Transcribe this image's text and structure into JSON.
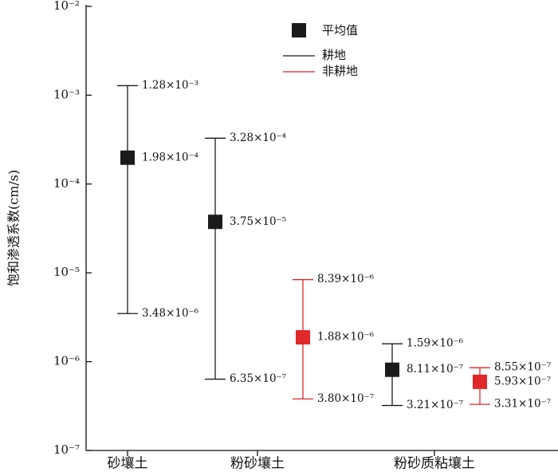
{
  "chart_data": {
    "type": "range",
    "ylabel": "饱和渗透系数(cm/s)",
    "mean_label": "平均值",
    "categories": [
      "砂壤土",
      "粉砂壤土",
      "粉砂质粘壤土"
    ],
    "log_y": true,
    "ylim": [
      1e-07,
      0.01
    ],
    "yticks": [
      {
        "value": 1e-07,
        "label": "10⁻⁷"
      },
      {
        "value": 1e-06,
        "label": "10⁻⁶"
      },
      {
        "value": 1e-05,
        "label": "10⁻⁵"
      },
      {
        "value": 0.0001,
        "label": "10⁻⁴"
      },
      {
        "value": 0.001,
        "label": "10⁻³"
      },
      {
        "value": 0.01,
        "label": "10⁻²"
      }
    ],
    "series": [
      {
        "name": "耕地",
        "color": "#1a1a1a",
        "values": [
          0.000198,
          3.75e-05,
          8.11e-07
        ],
        "value_labels": [
          "1.98×10⁻⁴",
          "3.75×10⁻⁵",
          "8.11×10⁻⁷"
        ],
        "low": [
          3.48e-06,
          6.35e-07,
          3.21e-07
        ],
        "low_labels": [
          "3.48×10⁻⁶",
          "6.35×10⁻⁷",
          "3.21×10⁻⁷"
        ],
        "high": [
          0.00128,
          0.000328,
          1.59e-06
        ],
        "high_labels": [
          "1.28×10⁻³",
          "3.28×10⁻⁴",
          "1.59×10⁻⁶"
        ]
      },
      {
        "name": "非耕地",
        "color": "#e0282a",
        "values": [
          null,
          1.88e-06,
          5.93e-07
        ],
        "value_labels": [
          null,
          "1.88×10⁻⁶",
          "5.93×10⁻⁷"
        ],
        "low": [
          null,
          3.8e-07,
          3.31e-07
        ],
        "low_labels": [
          null,
          "3.80×10⁻⁷",
          "3.31×10⁻⁷"
        ],
        "high": [
          null,
          8.39e-06,
          8.55e-07
        ],
        "high_labels": [
          null,
          "8.39×10⁻⁶",
          "8.55×10⁻⁷"
        ]
      }
    ]
  }
}
